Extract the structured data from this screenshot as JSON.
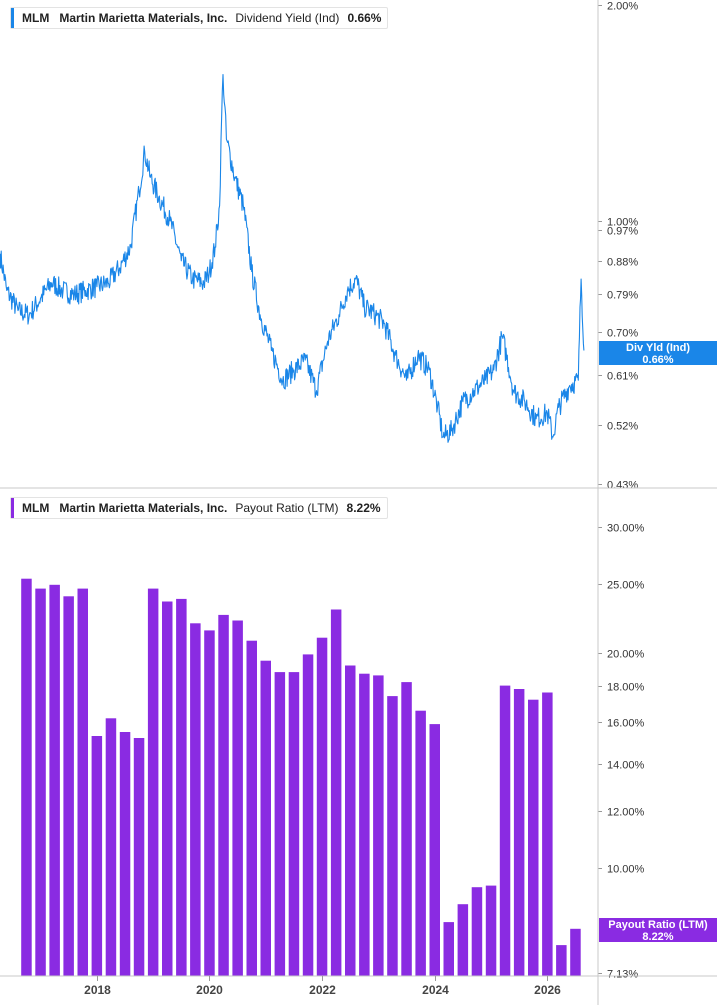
{
  "chart_data": [
    {
      "type": "line",
      "ticker": "MLM",
      "company": "Martin Marietta Materials, Inc.",
      "metric": "Dividend Yield (Ind)",
      "current_value": "0.66%",
      "badge_label": "Div Yld (Ind)",
      "badge_value": "0.66%",
      "color": "#1a86e8",
      "y_scale": "log",
      "ylim": [
        0.43,
        2.0
      ],
      "y_ticks": [
        {
          "value": 2.0,
          "label": "2.00%"
        },
        {
          "value": 1.0,
          "label": "1.00%"
        },
        {
          "value": 0.97,
          "label": "0.97%"
        },
        {
          "value": 0.88,
          "label": "0.88%"
        },
        {
          "value": 0.79,
          "label": "0.79%"
        },
        {
          "value": 0.7,
          "label": "0.70%"
        },
        {
          "value": 0.61,
          "label": "0.61%"
        },
        {
          "value": 0.52,
          "label": "0.52%"
        },
        {
          "value": 0.43,
          "label": "0.43%"
        }
      ],
      "x_unit": "year",
      "x": [
        2016.28,
        2016.4,
        2016.6,
        2016.8,
        2017.0,
        2017.2,
        2017.4,
        2017.6,
        2017.8,
        2018.0,
        2018.2,
        2018.4,
        2018.6,
        2018.75,
        2018.85,
        2018.95,
        2019.1,
        2019.3,
        2019.5,
        2019.7,
        2019.9,
        2020.0,
        2020.1,
        2020.18,
        2020.24,
        2020.3,
        2020.45,
        2020.6,
        2020.75,
        2020.9,
        2021.1,
        2021.3,
        2021.5,
        2021.7,
        2021.9,
        2022.1,
        2022.3,
        2022.45,
        2022.6,
        2022.75,
        2022.95,
        2023.1,
        2023.3,
        2023.5,
        2023.7,
        2023.9,
        2024.05,
        2024.15,
        2024.3,
        2024.5,
        2024.7,
        2024.9,
        2025.05,
        2025.2,
        2025.4,
        2025.6,
        2025.8,
        2026.0,
        2026.1,
        2026.2,
        2026.4,
        2026.55,
        2026.6,
        2026.65
      ],
      "values": [
        0.9,
        0.8,
        0.75,
        0.74,
        0.78,
        0.82,
        0.8,
        0.79,
        0.8,
        0.81,
        0.82,
        0.86,
        0.92,
        1.1,
        1.25,
        1.15,
        1.08,
        1.0,
        0.88,
        0.83,
        0.82,
        0.85,
        0.92,
        1.05,
        1.6,
        1.3,
        1.15,
        1.05,
        0.85,
        0.74,
        0.66,
        0.6,
        0.62,
        0.64,
        0.58,
        0.68,
        0.74,
        0.8,
        0.83,
        0.76,
        0.74,
        0.72,
        0.65,
        0.6,
        0.65,
        0.62,
        0.55,
        0.5,
        0.51,
        0.56,
        0.58,
        0.6,
        0.62,
        0.69,
        0.58,
        0.56,
        0.53,
        0.54,
        0.5,
        0.55,
        0.59,
        0.6,
        0.83,
        0.66
      ]
    },
    {
      "type": "bar",
      "ticker": "MLM",
      "company": "Martin Marietta Materials, Inc.",
      "metric": "Payout Ratio (LTM)",
      "current_value": "8.22%",
      "badge_label": "Payout Ratio (LTM)",
      "badge_value": "8.22%",
      "color": "#8a2be2",
      "y_scale": "log",
      "ylim": [
        7.13,
        30.0
      ],
      "y_ticks": [
        {
          "value": 30,
          "label": "30.00%"
        },
        {
          "value": 25,
          "label": "25.00%"
        },
        {
          "value": 20,
          "label": "20.00%"
        },
        {
          "value": 18,
          "label": "18.00%"
        },
        {
          "value": 16,
          "label": "16.00%"
        },
        {
          "value": 14,
          "label": "14.00%"
        },
        {
          "value": 12,
          "label": "12.00%"
        },
        {
          "value": 10,
          "label": "10.00%"
        },
        {
          "value": 7.13,
          "label": "7.13%"
        }
      ],
      "x_unit": "year (quarter end)",
      "x": [
        2016.75,
        2017.0,
        2017.25,
        2017.5,
        2017.75,
        2018.0,
        2018.25,
        2018.5,
        2018.75,
        2019.0,
        2019.25,
        2019.5,
        2019.75,
        2020.0,
        2020.25,
        2020.5,
        2020.75,
        2021.0,
        2021.25,
        2021.5,
        2021.75,
        2022.0,
        2022.25,
        2022.5,
        2022.75,
        2023.0,
        2023.25,
        2023.5,
        2023.75,
        2024.0,
        2024.25,
        2024.5,
        2024.75,
        2025.0,
        2025.25,
        2025.5,
        2025.75,
        2026.0,
        2026.25,
        2026.5
      ],
      "values": [
        25.4,
        24.6,
        24.9,
        24.0,
        24.6,
        15.3,
        16.2,
        15.5,
        15.2,
        24.6,
        23.6,
        23.8,
        22.0,
        21.5,
        22.6,
        22.2,
        20.8,
        19.5,
        18.8,
        18.8,
        19.9,
        21.0,
        23.0,
        19.2,
        18.7,
        18.6,
        17.4,
        18.2,
        16.6,
        15.9,
        8.4,
        8.9,
        9.4,
        9.45,
        18.0,
        17.8,
        17.2,
        17.6,
        7.8,
        8.22
      ]
    }
  ],
  "x_axis": {
    "ticks": [
      {
        "value": 2018,
        "label": "2018"
      },
      {
        "value": 2020,
        "label": "2020"
      },
      {
        "value": 2022,
        "label": "2022"
      },
      {
        "value": 2024,
        "label": "2024"
      },
      {
        "value": 2026,
        "label": "2026"
      }
    ]
  }
}
